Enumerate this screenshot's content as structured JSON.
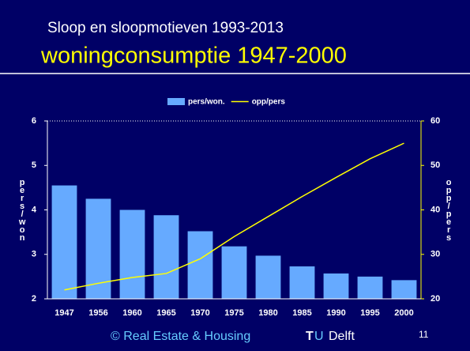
{
  "slide": {
    "title": "Sloop en sloopmotieven 1993-2013",
    "subtitle": "woningconsumptie 1947-2000",
    "credit": "© Real Estate & Housing",
    "logo_t": "T",
    "logo_u": "U",
    "logo_rest": "Delft",
    "page": "11"
  },
  "chart_data": {
    "type": "bar_line",
    "ylabel": "pers/won",
    "y2label": "opp/pers",
    "categories": [
      "1947",
      "1956",
      "1960",
      "1965",
      "1970",
      "1975",
      "1980",
      "1985",
      "1990",
      "1995",
      "2000"
    ],
    "series": [
      {
        "name": "pers/won.",
        "color": "#66aaff",
        "type": "bar",
        "values": [
          4.55,
          4.25,
          4.0,
          3.88,
          3.52,
          3.18,
          2.97,
          2.73,
          2.57,
          2.5,
          2.42
        ]
      },
      {
        "name": "opp/pers",
        "color": "#ffff00",
        "type": "line",
        "axis": "y2",
        "values": [
          22,
          23.5,
          24.8,
          25.7,
          29,
          34,
          38.5,
          43,
          47.3,
          51.5,
          55
        ]
      }
    ],
    "ylim": [
      2,
      6
    ],
    "yticks": [
      2,
      3,
      4,
      5,
      6
    ],
    "y2lim": [
      20,
      60
    ],
    "y2ticks": [
      20,
      30,
      40,
      50,
      60
    ],
    "legend": "top"
  }
}
